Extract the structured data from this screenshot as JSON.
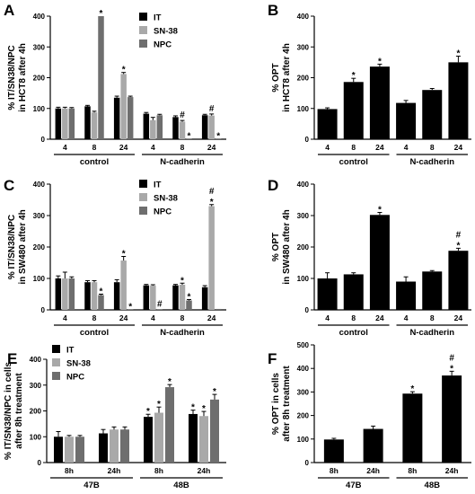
{
  "colors": {
    "IT": "#000000",
    "SN-38": "#a9a9a9",
    "NPC": "#6e6e6e",
    "OPT": "#000000"
  },
  "chart_data": [
    {
      "panel": "A",
      "type": "bar",
      "ylabel": [
        "% IT/SN38/NPC",
        "in HCT8 after 4h"
      ],
      "ylim": [
        0,
        400
      ],
      "yticks": [
        0,
        100,
        200,
        300,
        400
      ],
      "categories": [
        "4",
        "8",
        "24",
        "4",
        "8",
        "24"
      ],
      "groups": [
        {
          "label": "control",
          "from": 0,
          "to": 2
        },
        {
          "label": "N-cadherin",
          "from": 3,
          "to": 5
        }
      ],
      "legend": {
        "position": "top-right",
        "entries": [
          "IT",
          "SN-38",
          "NPC"
        ]
      },
      "series": [
        {
          "name": "IT",
          "color_key": "IT",
          "values": [
            100,
            107,
            135,
            83,
            72,
            78
          ],
          "errors": [
            4,
            3,
            5,
            4,
            4,
            3
          ],
          "marks": [
            "",
            "",
            "",
            "",
            "",
            ""
          ]
        },
        {
          "name": "SN-38",
          "color_key": "SN-38",
          "values": [
            100,
            87,
            212,
            62,
            57,
            77
          ],
          "errors": [
            4,
            4,
            5,
            9,
            4,
            5
          ],
          "marks": [
            "",
            "",
            "*",
            "",
            "#",
            "#"
          ]
        },
        {
          "name": "NPC",
          "color_key": "NPC",
          "values": [
            100,
            400,
            137,
            78,
            1,
            2
          ],
          "errors": [
            3,
            0,
            3,
            3,
            0,
            0
          ],
          "marks": [
            "",
            "*",
            "",
            "",
            "*",
            "*"
          ]
        }
      ]
    },
    {
      "panel": "B",
      "type": "bar",
      "ylabel": [
        "% OPT",
        "in HCT8 after 4h"
      ],
      "ylim": [
        0,
        400
      ],
      "yticks": [
        0,
        100,
        200,
        300,
        400
      ],
      "categories": [
        "4",
        "8",
        "24",
        "4",
        "8",
        "24"
      ],
      "groups": [
        {
          "label": "control",
          "from": 0,
          "to": 2
        },
        {
          "label": "N-cadherin",
          "from": 3,
          "to": 5
        }
      ],
      "series": [
        {
          "name": "OPT",
          "color_key": "OPT",
          "values": [
            98,
            186,
            236,
            118,
            160,
            250
          ],
          "errors": [
            4,
            12,
            8,
            8,
            5,
            20
          ],
          "marks": [
            "",
            "*",
            "*",
            "",
            "",
            "*"
          ]
        }
      ]
    },
    {
      "panel": "C",
      "type": "bar",
      "ylabel": [
        "% IT/SN38/NPC",
        "in SW480 after 4h"
      ],
      "ylim": [
        0,
        400
      ],
      "yticks": [
        0,
        100,
        200,
        300,
        400
      ],
      "categories": [
        "4",
        "8",
        "24",
        "4",
        "8",
        "24"
      ],
      "groups": [
        {
          "label": "control",
          "from": 0,
          "to": 2
        },
        {
          "label": "N-cadherin",
          "from": 3,
          "to": 5
        }
      ],
      "legend": {
        "position": "top-right",
        "entries": [
          "IT",
          "SN-38",
          "NPC"
        ]
      },
      "series": [
        {
          "name": "IT",
          "color_key": "IT",
          "values": [
            100,
            88,
            88,
            78,
            78,
            72
          ],
          "errors": [
            8,
            5,
            8,
            3,
            3,
            5
          ],
          "marks": [
            "",
            "",
            "",
            "",
            "",
            ""
          ]
        },
        {
          "name": "SN-38",
          "color_key": "SN-38",
          "values": [
            100,
            88,
            157,
            77,
            80,
            330
          ],
          "errors": [
            20,
            5,
            13,
            3,
            5,
            5
          ],
          "marks": [
            "",
            "",
            "*",
            "",
            "*",
            "#*"
          ]
        },
        {
          "name": "NPC",
          "color_key": "NPC",
          "values": [
            100,
            47,
            2,
            2,
            30,
            3
          ],
          "errors": [
            5,
            3,
            0,
            0,
            3,
            0
          ],
          "marks": [
            "",
            "*",
            "*",
            "#",
            "*",
            ""
          ]
        }
      ]
    },
    {
      "panel": "D",
      "type": "bar",
      "ylabel": [
        "% OPT",
        "in SW480 after 4h"
      ],
      "ylim": [
        0,
        400
      ],
      "yticks": [
        0,
        100,
        200,
        300,
        400
      ],
      "categories": [
        "4",
        "8",
        "24",
        "4",
        "8",
        "24"
      ],
      "groups": [
        {
          "label": "control",
          "from": 0,
          "to": 2
        },
        {
          "label": "N-cadherin",
          "from": 3,
          "to": 5
        }
      ],
      "series": [
        {
          "name": "OPT",
          "color_key": "OPT",
          "values": [
            100,
            113,
            302,
            90,
            122,
            188
          ],
          "errors": [
            18,
            5,
            8,
            15,
            3,
            8
          ],
          "marks": [
            "",
            "",
            "*",
            "",
            "",
            "#*"
          ]
        }
      ]
    },
    {
      "panel": "E",
      "type": "bar",
      "ylabel": [
        "% IT/SN38/NPC in cells",
        "after 8h treatment"
      ],
      "ylim": [
        0,
        400
      ],
      "yticks": [
        0,
        100,
        200,
        300,
        400
      ],
      "categories": [
        "8h",
        "24h",
        "8h",
        "24h"
      ],
      "groups": [
        {
          "label": "47B",
          "from": 0,
          "to": 1
        },
        {
          "label": "48B",
          "from": 2,
          "to": 3
        }
      ],
      "legend": {
        "position": "top-left",
        "entries": [
          "IT",
          "SN-38",
          "NPC"
        ]
      },
      "series": [
        {
          "name": "IT",
          "color_key": "IT",
          "values": [
            100,
            113,
            177,
            188
          ],
          "errors": [
            20,
            15,
            10,
            15
          ],
          "marks": [
            "",
            "",
            "*",
            "*"
          ]
        },
        {
          "name": "SN-38",
          "color_key": "SN-38",
          "values": [
            100,
            128,
            193,
            180
          ],
          "errors": [
            5,
            10,
            22,
            18
          ],
          "marks": [
            "",
            "",
            "*",
            "*"
          ]
        },
        {
          "name": "NPC",
          "color_key": "NPC",
          "values": [
            100,
            128,
            292,
            244
          ],
          "errors": [
            5,
            10,
            10,
            20
          ],
          "marks": [
            "",
            "",
            "*",
            "*"
          ]
        }
      ]
    },
    {
      "panel": "F",
      "type": "bar",
      "ylabel": [
        "% OPT in cells",
        "after 8h treatment"
      ],
      "ylim": [
        0,
        500
      ],
      "yticks": [
        0,
        100,
        200,
        300,
        400,
        500
      ],
      "categories": [
        "8h",
        "24h",
        "8h",
        "24h"
      ],
      "groups": [
        {
          "label": "47B",
          "from": 0,
          "to": 1
        },
        {
          "label": "48B",
          "from": 2,
          "to": 3
        }
      ],
      "series": [
        {
          "name": "OPT",
          "color_key": "OPT",
          "values": [
            98,
            143,
            293,
            370
          ],
          "errors": [
            5,
            12,
            8,
            18
          ],
          "marks": [
            "",
            "",
            "*",
            "#*"
          ]
        }
      ]
    }
  ]
}
